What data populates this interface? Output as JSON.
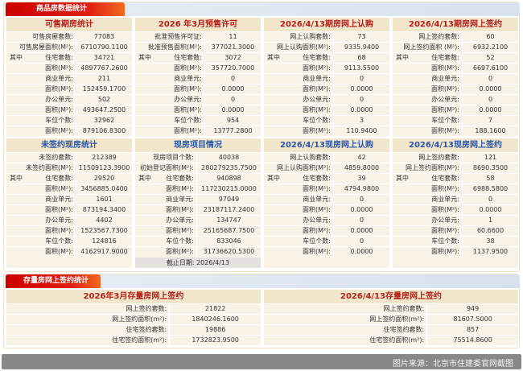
{
  "section1": {
    "title": "商品房数据统计"
  },
  "section2": {
    "title": "存量房网上签约统计"
  },
  "colors": {
    "red_title": "#b3201a",
    "blue_title": "#2a55a8",
    "tab_red": "#e02010"
  },
  "panels": [
    {
      "title": "可售期房统计",
      "color": "red",
      "rows": [
        {
          "prefix": "",
          "label": "可售房屋套数:",
          "value": "77083"
        },
        {
          "prefix": "",
          "label": "可售房屋面积(M²):",
          "value": "6710790.1100"
        },
        {
          "prefix": "其中",
          "label": "住宅套数:",
          "value": "34721"
        },
        {
          "prefix": "",
          "label": "面积(M²):",
          "value": "4897767.2600"
        },
        {
          "prefix": "",
          "label": "商业单元:",
          "value": "211"
        },
        {
          "prefix": "",
          "label": "面积(M²):",
          "value": "152459.1700"
        },
        {
          "prefix": "",
          "label": "办公单元:",
          "value": "502"
        },
        {
          "prefix": "",
          "label": "面积(M²):",
          "value": "493647.2500"
        },
        {
          "prefix": "",
          "label": "车位个数:",
          "value": "32962"
        },
        {
          "prefix": "",
          "label": "面积(M²):",
          "value": "879106.8300"
        }
      ]
    },
    {
      "title": "2026 年3月预售许可",
      "color": "red",
      "rows": [
        {
          "prefix": "",
          "label": "批准预售许可证:",
          "value": "11"
        },
        {
          "prefix": "",
          "label": "批准预售面积(M²):",
          "value": "377021.3000"
        },
        {
          "prefix": "其中",
          "label": "住宅套数:",
          "value": "3072"
        },
        {
          "prefix": "",
          "label": "面积(M²):",
          "value": "357720.7000"
        },
        {
          "prefix": "",
          "label": "商业单元:",
          "value": "0"
        },
        {
          "prefix": "",
          "label": "面积(M²):",
          "value": "0.0000"
        },
        {
          "prefix": "",
          "label": "办公单元:",
          "value": "0"
        },
        {
          "prefix": "",
          "label": "面积(M²):",
          "value": "0.0000"
        },
        {
          "prefix": "",
          "label": "车位个数:",
          "value": "954"
        },
        {
          "prefix": "",
          "label": "面积(M²):",
          "value": "13777.2800"
        }
      ]
    },
    {
      "title": "2026/4/13期房网上认购",
      "color": "red",
      "rows": [
        {
          "prefix": "",
          "label": "网上认购套数:",
          "value": "73"
        },
        {
          "prefix": "",
          "label": "网上认购面积(M²):",
          "value": "9335.9400"
        },
        {
          "prefix": "其中",
          "label": "住宅套数:",
          "value": "68"
        },
        {
          "prefix": "",
          "label": "面积(M²):",
          "value": "9113.5500"
        },
        {
          "prefix": "",
          "label": "商业单元:",
          "value": "0"
        },
        {
          "prefix": "",
          "label": "面积(M²):",
          "value": "0.0000"
        },
        {
          "prefix": "",
          "label": "办公单元:",
          "value": "0"
        },
        {
          "prefix": "",
          "label": "面积(M²):",
          "value": "0.0000"
        },
        {
          "prefix": "",
          "label": "车位个数:",
          "value": "3"
        },
        {
          "prefix": "",
          "label": "面积(M²):",
          "value": "110.9400"
        }
      ]
    },
    {
      "title": "2026/4/13期房网上签约",
      "color": "red",
      "rows": [
        {
          "prefix": "",
          "label": "网上签约套数:",
          "value": "60"
        },
        {
          "prefix": "",
          "label": "网上签约面积 (M²):",
          "value": "6932.2100"
        },
        {
          "prefix": "其中",
          "label": "住宅套数:",
          "value": "52"
        },
        {
          "prefix": "",
          "label": "面积(M²):",
          "value": "6697.6100"
        },
        {
          "prefix": "",
          "label": "商业单元:",
          "value": "0"
        },
        {
          "prefix": "",
          "label": "面积(M²):",
          "value": "0.0000"
        },
        {
          "prefix": "",
          "label": "办公单元:",
          "value": "0"
        },
        {
          "prefix": "",
          "label": "面积(M²):",
          "value": "0.0000"
        },
        {
          "prefix": "",
          "label": "车位个数:",
          "value": "7"
        },
        {
          "prefix": "",
          "label": "面积(M²):",
          "value": "188.1600"
        }
      ]
    },
    {
      "title": "未签约现房统计",
      "color": "blue",
      "rows": [
        {
          "prefix": "",
          "label": "未签约套数:",
          "value": "212389"
        },
        {
          "prefix": "",
          "label": "未签约面积(M²):",
          "value": "11509123.3900"
        },
        {
          "prefix": "其中",
          "label": "住宅套数:",
          "value": "29520"
        },
        {
          "prefix": "",
          "label": "面积(M²):",
          "value": "3456885.0400"
        },
        {
          "prefix": "",
          "label": "商业单元:",
          "value": "1601"
        },
        {
          "prefix": "",
          "label": "面积(M²):",
          "value": "873194.3400"
        },
        {
          "prefix": "",
          "label": "办公单元:",
          "value": "4402"
        },
        {
          "prefix": "",
          "label": "面积(M²):",
          "value": "1523567.7300"
        },
        {
          "prefix": "",
          "label": "车位个数:",
          "value": "124816"
        },
        {
          "prefix": "",
          "label": "面积(M²):",
          "value": "4162917.9000"
        }
      ]
    },
    {
      "title": "现房项目情况",
      "color": "blue",
      "rows": [
        {
          "prefix": "",
          "label": "现房项目个数:",
          "value": "40038"
        },
        {
          "prefix": "",
          "label": "初始登记面积(M²):",
          "value": "280279235.7500"
        },
        {
          "prefix": "其中",
          "label": "住宅套数:",
          "value": "940898"
        },
        {
          "prefix": "",
          "label": "面积(M²):",
          "value": "117230215.0000"
        },
        {
          "prefix": "",
          "label": "商业单元:",
          "value": "97049"
        },
        {
          "prefix": "",
          "label": "面积(M²):",
          "value": "23187117.2400"
        },
        {
          "prefix": "",
          "label": "办公单元:",
          "value": "134747"
        },
        {
          "prefix": "",
          "label": "面积(M²):",
          "value": "25165687.7500"
        },
        {
          "prefix": "",
          "label": "车位个数:",
          "value": "833046"
        },
        {
          "prefix": "",
          "label": "面积(M²):",
          "value": "31736620.5300"
        }
      ],
      "footer": "截止日期:  2026/4/13"
    },
    {
      "title": "2026/4/13现房网上认购",
      "color": "blue",
      "rows": [
        {
          "prefix": "",
          "label": "网上认购套数:",
          "value": "42"
        },
        {
          "prefix": "",
          "label": "网上认购面积(M²):",
          "value": "4859.8000"
        },
        {
          "prefix": "其中",
          "label": "住宅套数:",
          "value": "39"
        },
        {
          "prefix": "",
          "label": "面积(M²):",
          "value": "4794.9800"
        },
        {
          "prefix": "",
          "label": "商业单元:",
          "value": "0"
        },
        {
          "prefix": "",
          "label": "面积(M²):",
          "value": "0.0000"
        },
        {
          "prefix": "",
          "label": "办公单元:",
          "value": "0"
        },
        {
          "prefix": "",
          "label": "面积(M²):",
          "value": "0.0000"
        },
        {
          "prefix": "",
          "label": "车位个数:",
          "value": "0"
        },
        {
          "prefix": "",
          "label": "面积(M²):",
          "value": "0.0000"
        }
      ]
    },
    {
      "title": "2026/4/13现房网上签约",
      "color": "blue",
      "rows": [
        {
          "prefix": "",
          "label": "网上签约套数:",
          "value": "121"
        },
        {
          "prefix": "",
          "label": "网上签约面积(M²):",
          "value": "8690.3500"
        },
        {
          "prefix": "其中",
          "label": "住宅套数:",
          "value": "58"
        },
        {
          "prefix": "",
          "label": "面积(M²):",
          "value": "6988.5800"
        },
        {
          "prefix": "",
          "label": "商业单元:",
          "value": "0"
        },
        {
          "prefix": "",
          "label": "面积(M²):",
          "value": "0.0000"
        },
        {
          "prefix": "",
          "label": "办公单元:",
          "value": "1"
        },
        {
          "prefix": "",
          "label": "面积(M²):",
          "value": "60.6600"
        },
        {
          "prefix": "",
          "label": "车位个数:",
          "value": "38"
        },
        {
          "prefix": "",
          "label": "面积(M²):",
          "value": "1137.9500"
        }
      ]
    }
  ],
  "bottom_panels": [
    {
      "title": "2026年3月存量房网上签约",
      "rows": [
        {
          "label": "网上签约套数:",
          "value": "21822"
        },
        {
          "label": "网上签约面积(m²):",
          "value": "1840246.1600"
        },
        {
          "label": "住宅签约套数:",
          "value": "19886"
        },
        {
          "label": "住宅签约面积(m²):",
          "value": "1732823.9500"
        }
      ]
    },
    {
      "title": "2026/4/13存量房网上签约",
      "rows": [
        {
          "label": "网上签约套数:",
          "value": "949"
        },
        {
          "label": "网上签约面积(m²):",
          "value": "81607.5000"
        },
        {
          "label": "住宅签约套数:",
          "value": "857"
        },
        {
          "label": "住宅签约面积(m²):",
          "value": "75514.8600"
        }
      ]
    }
  ],
  "caption": "图片来源：北京市住建委官网截图"
}
